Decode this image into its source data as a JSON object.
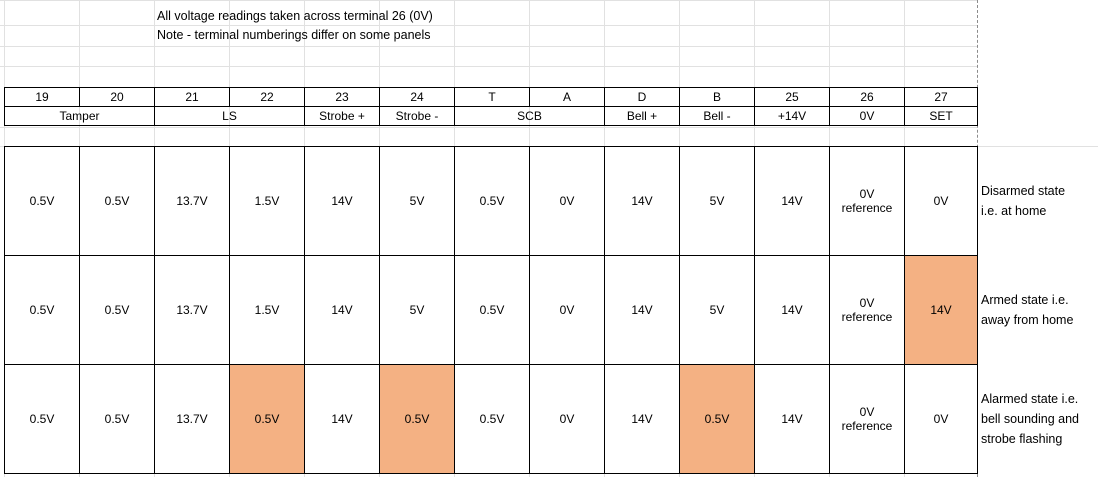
{
  "notes": [
    "All voltage readings taken across terminal 26 (0V)",
    "Note - terminal numberings differ on some panels"
  ],
  "terminals": [
    "19",
    "20",
    "21",
    "22",
    "23",
    "24",
    "T",
    "A",
    "D",
    "B",
    "25",
    "26",
    "27"
  ],
  "groups": [
    {
      "label": "Tamper",
      "span": 2
    },
    {
      "label": "LS",
      "span": 2
    },
    {
      "label": "Strobe +",
      "span": 1
    },
    {
      "label": "Strobe -",
      "span": 1
    },
    {
      "label": "SCB",
      "span": 2
    },
    {
      "label": "Bell +",
      "span": 1
    },
    {
      "label": "Bell -",
      "span": 1
    },
    {
      "label": "+14V",
      "span": 1
    },
    {
      "label": "0V",
      "span": 1
    },
    {
      "label": "SET",
      "span": 1
    }
  ],
  "reference_top": "0V",
  "reference_bottom": "reference",
  "rows": [
    {
      "state_lines": [
        "Disarmed state",
        "i.e. at home"
      ],
      "values": [
        "0.5V",
        "0.5V",
        "13.7V",
        "1.5V",
        "14V",
        "5V",
        "0.5V",
        "0V",
        "14V",
        "5V",
        "14V",
        "",
        "0V"
      ],
      "highlight": []
    },
    {
      "state_lines": [
        "Armed state i.e.",
        "away from home"
      ],
      "values": [
        "0.5V",
        "0.5V",
        "13.7V",
        "1.5V",
        "14V",
        "5V",
        "0.5V",
        "0V",
        "14V",
        "5V",
        "14V",
        "",
        "14V"
      ],
      "highlight": [
        12
      ]
    },
    {
      "state_lines": [
        "Alarmed state i.e.",
        "bell sounding and",
        "strobe flashing"
      ],
      "values": [
        "0.5V",
        "0.5V",
        "13.7V",
        "0.5V",
        "14V",
        "0.5V",
        "0.5V",
        "0V",
        "14V",
        "0.5V",
        "14V",
        "",
        "0V"
      ],
      "highlight": [
        3,
        5,
        9
      ]
    }
  ],
  "colors": {
    "highlight": "#f4b183",
    "grid": "#e1e1e1"
  }
}
